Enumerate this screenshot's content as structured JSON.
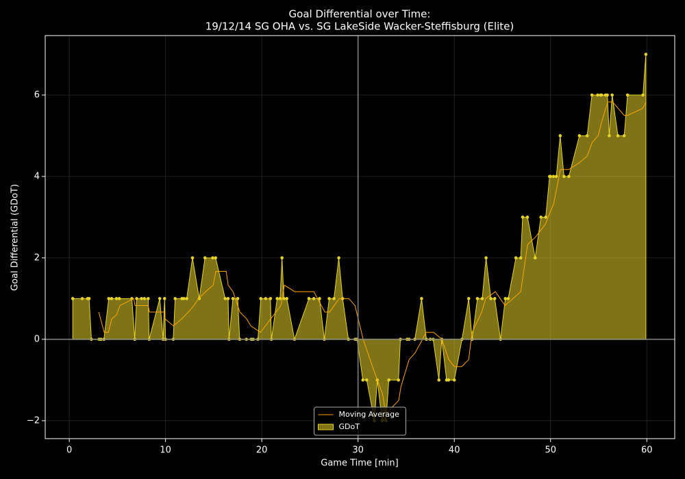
{
  "chart_data": {
    "type": "line",
    "title": "Goal Differential over Time:",
    "subtitle": "19/12/14 SG OHA  vs.  SG LakeSide Wacker-Steffisburg (Elite)",
    "x_label": "Game Time [min]",
    "y_label": "Goal Differential (GDoT)",
    "xlim": [
      -2.5,
      62.9
    ],
    "ylim": [
      -2.44,
      7.46
    ],
    "xticks": [
      0,
      10,
      20,
      30,
      40,
      50,
      60
    ],
    "yticks": [
      {
        "value": -2,
        "label": "−2"
      },
      0,
      2,
      4,
      6
    ],
    "grid": true,
    "legend": "lower center",
    "reference_lines": {
      "x": [
        30
      ],
      "y": [
        0
      ]
    },
    "series": [
      {
        "name": "Moving Average",
        "style": "line",
        "color": "#ffa500",
        "x": [
          3.06,
          3.63,
          4.06,
          4.41,
          4.91,
          5.27,
          6.69,
          6.83,
          8.19,
          8.33,
          9.9,
          9.96,
          10.82,
          11.67,
          12.38,
          12.95,
          13.45,
          14.16,
          14.95,
          15.23,
          16.3,
          16.51,
          17.01,
          17.72,
          18.43,
          18.86,
          19.86,
          20.93,
          21.99,
          22.35,
          23.42,
          25.41,
          26.55,
          27.05,
          28.04,
          29.04,
          29.68,
          30.53,
          31.74,
          32.53,
          32.88,
          34.23,
          34.45,
          35.3,
          35.94,
          37.08,
          37.86,
          38.72,
          39.43,
          40.0,
          40.78,
          41.49,
          41.85,
          42.85,
          43.27,
          44.27,
          45.27,
          46.9,
          47.62,
          48.4,
          49.47,
          50.32,
          51.03,
          51.89,
          52.95,
          53.81,
          54.31,
          54.95,
          55.3,
          55.94,
          56.44,
          57.65,
          58.01,
          59.57,
          59.93
        ],
        "values": [
          0.67,
          0.17,
          0.17,
          0.5,
          0.6,
          0.83,
          1.0,
          0.83,
          0.83,
          0.67,
          0.67,
          0.5,
          0.33,
          0.5,
          0.67,
          0.83,
          1.0,
          1.17,
          1.33,
          1.67,
          1.67,
          1.33,
          1.17,
          0.67,
          0.5,
          0.33,
          0.17,
          0.5,
          0.83,
          1.33,
          1.17,
          1.17,
          0.67,
          0.67,
          1.0,
          1.0,
          0.83,
          0,
          -0.83,
          -1.33,
          -1.83,
          -1.5,
          -1.17,
          -0.5,
          -0.33,
          0.17,
          0.17,
          0,
          -0.5,
          -0.67,
          -0.67,
          -0.5,
          0.17,
          0.67,
          1.0,
          1.17,
          0.83,
          1.17,
          2.33,
          2.5,
          2.83,
          3.33,
          4.17,
          4.17,
          4.33,
          4.5,
          4.83,
          5.0,
          5.33,
          5.83,
          5.83,
          5.5,
          5.5,
          5.67,
          5.83
        ]
      },
      {
        "name": "GDoT",
        "style": "area",
        "color": "#e6d32a",
        "x": [
          0.36,
          1.35,
          1.9,
          2.06,
          2.3,
          3.1,
          3.3,
          3.6,
          4.1,
          4.4,
          4.9,
          5.2,
          6.5,
          6.8,
          7.0,
          7.5,
          7.8,
          8.2,
          8.3,
          9.4,
          9.75,
          9.9,
          10.0,
          10.8,
          11.0,
          11.7,
          11.9,
          12.2,
          12.8,
          13.5,
          14.1,
          14.9,
          15.2,
          16.2,
          16.5,
          16.6,
          17.0,
          17.5,
          17.7,
          18.4,
          18.9,
          19.1,
          19.6,
          19.9,
          20.4,
          20.9,
          21.0,
          21.6,
          21.9,
          22.1,
          22.3,
          22.6,
          23.4,
          24.9,
          25.4,
          26.0,
          26.5,
          27.0,
          27.5,
          28.0,
          28.4,
          29.0,
          29.7,
          29.9,
          30.5,
          30.9,
          31.7,
          32.0,
          32.5,
          32.9,
          33.2,
          34.2,
          34.4,
          35.1,
          35.3,
          35.9,
          36.6,
          37.1,
          37.5,
          37.8,
          38.4,
          38.7,
          39.2,
          39.4,
          40.0,
          40.8,
          41.5,
          41.85,
          42.4,
          42.9,
          43.3,
          43.8,
          44.2,
          44.8,
          45.3,
          45.6,
          46.4,
          46.9,
          47.1,
          47.6,
          48.4,
          49.0,
          49.5,
          49.9,
          50.0,
          50.3,
          50.6,
          51.0,
          51.4,
          51.9,
          53.0,
          53.8,
          54.3,
          54.9,
          55.2,
          55.3,
          55.7,
          55.9,
          56.1,
          56.4,
          57.0,
          57.65,
          58.0,
          59.6,
          59.9
        ],
        "values": [
          1,
          1,
          1,
          1,
          0,
          0,
          0,
          0,
          1,
          1,
          1,
          1,
          1,
          0,
          1,
          1,
          1,
          1,
          0,
          1,
          0,
          1,
          0,
          0,
          1,
          1,
          1,
          1,
          2,
          1,
          2,
          2,
          2,
          1,
          1,
          0,
          1,
          1,
          0,
          0,
          0,
          0,
          0,
          1,
          1,
          1,
          0,
          1,
          1,
          2,
          1,
          1,
          0,
          1,
          1,
          1,
          0,
          1,
          1,
          2,
          1,
          0,
          0,
          0,
          -1,
          -1,
          -2,
          -1,
          -2,
          -2,
          -1,
          -1,
          0,
          0,
          0,
          0,
          1,
          0,
          0,
          0,
          -1,
          0,
          -1,
          -1,
          -1,
          0,
          1,
          0,
          1,
          1,
          2,
          1,
          1,
          0,
          1,
          1,
          2,
          2,
          3,
          3,
          2,
          3,
          3,
          4,
          4,
          4,
          4,
          5,
          4,
          4,
          5,
          5,
          6,
          6,
          6,
          6,
          6,
          6,
          5,
          6,
          5,
          5,
          6,
          6,
          7
        ]
      }
    ]
  }
}
